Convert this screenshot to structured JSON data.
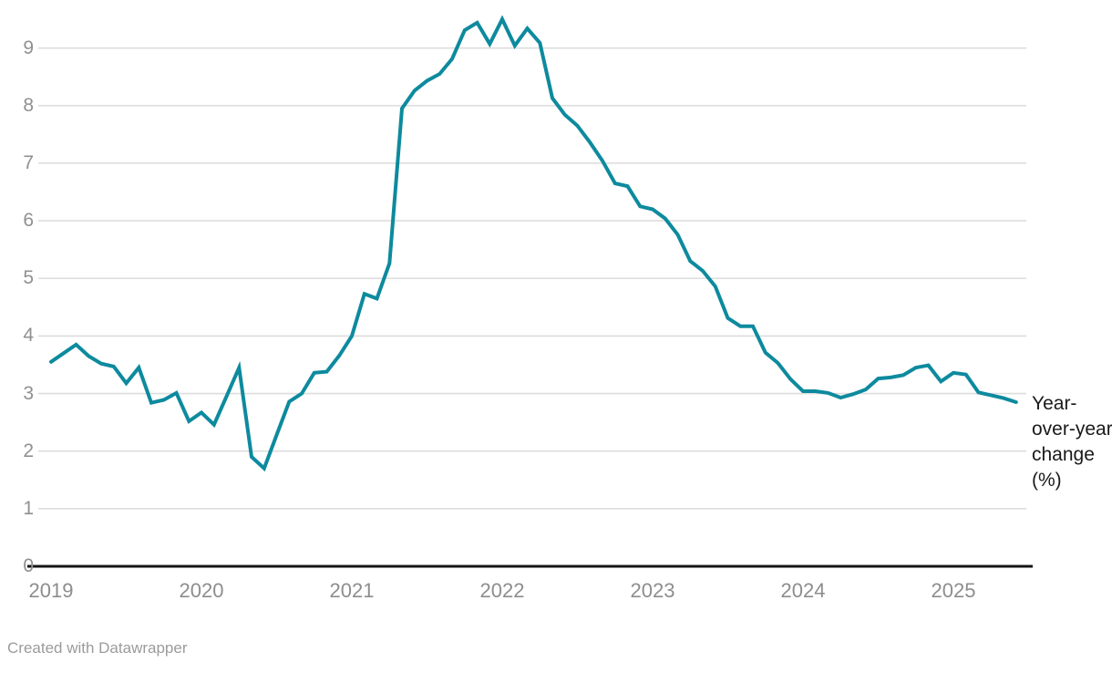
{
  "chart": {
    "series_label": "Year-over-year change (%)",
    "line_color": "#0d8a9e",
    "gridline_color": "#dddddd",
    "axis_color": "#151515",
    "tick_label_color": "#909090"
  },
  "footer": {
    "credit": "Created with Datawrapper"
  },
  "chart_data": {
    "type": "line",
    "title": "",
    "xlabel": "",
    "ylabel": "Year-over-year change (%)",
    "legend": "none",
    "grid": "horizontal",
    "frequency": "monthly",
    "ylim": [
      0,
      9.6
    ],
    "y_ticks": [
      0,
      1,
      2,
      3,
      4,
      5,
      6,
      7,
      8,
      9
    ],
    "x_tick_labels": [
      "2019",
      "2020",
      "2021",
      "2022",
      "2023",
      "2024",
      "2025"
    ],
    "x": [
      "2019-01",
      "2019-02",
      "2019-03",
      "2019-04",
      "2019-05",
      "2019-06",
      "2019-07",
      "2019-08",
      "2019-09",
      "2019-10",
      "2019-11",
      "2019-12",
      "2020-01",
      "2020-02",
      "2020-03",
      "2020-04",
      "2020-05",
      "2020-06",
      "2020-07",
      "2020-08",
      "2020-09",
      "2020-10",
      "2020-11",
      "2020-12",
      "2021-01",
      "2021-02",
      "2021-03",
      "2021-04",
      "2021-05",
      "2021-06",
      "2021-07",
      "2021-08",
      "2021-09",
      "2021-10",
      "2021-11",
      "2021-12",
      "2022-01",
      "2022-02",
      "2022-03",
      "2022-04",
      "2022-05",
      "2022-06",
      "2022-07",
      "2022-08",
      "2022-09",
      "2022-10",
      "2022-11",
      "2022-12",
      "2023-01",
      "2023-02",
      "2023-03",
      "2023-04",
      "2023-05",
      "2023-06",
      "2023-07",
      "2023-08",
      "2023-09",
      "2023-10",
      "2023-11",
      "2023-12",
      "2024-01",
      "2024-02",
      "2024-03",
      "2024-04",
      "2024-05",
      "2024-06",
      "2024-07",
      "2024-08",
      "2024-09",
      "2024-10",
      "2024-11",
      "2024-12",
      "2025-01",
      "2025-02",
      "2025-03",
      "2025-04",
      "2025-05",
      "2025-06"
    ],
    "series": [
      {
        "name": "Year-over-year change (%)",
        "values": [
          3.55,
          3.7,
          3.85,
          3.65,
          3.52,
          3.47,
          3.18,
          3.45,
          2.84,
          2.89,
          3.01,
          2.52,
          2.67,
          2.46,
          2.95,
          3.45,
          1.9,
          1.7,
          2.28,
          2.86,
          3.0,
          3.36,
          3.38,
          3.66,
          4.0,
          4.73,
          4.65,
          5.26,
          7.95,
          8.26,
          8.43,
          8.55,
          8.81,
          9.31,
          9.44,
          9.07,
          9.5,
          9.04,
          9.34,
          9.09,
          8.13,
          7.84,
          7.65,
          7.36,
          7.04,
          6.65,
          6.6,
          6.25,
          6.2,
          6.04,
          5.76,
          5.3,
          5.13,
          4.86,
          4.31,
          4.17,
          4.17,
          3.71,
          3.53,
          3.25,
          3.04,
          3.04,
          3.01,
          2.93,
          2.99,
          3.07,
          3.26,
          3.28,
          3.32,
          3.45,
          3.49,
          3.21,
          3.36,
          3.33,
          3.02,
          2.97,
          2.92,
          2.85
        ]
      }
    ]
  }
}
